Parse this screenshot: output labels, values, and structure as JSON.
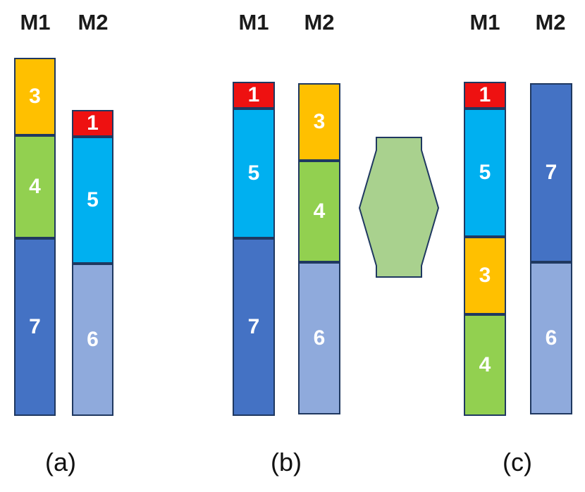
{
  "colors": {
    "job1": "#ee1111",
    "job3": "#ffc000",
    "job4": "#92d050",
    "job5": "#00b0f0",
    "job6": "#8faadc",
    "job7": "#4472c4",
    "border": "#1f3860",
    "arrow_fill": "#a9d18e",
    "arrow_stroke": "#1f3860"
  },
  "arrow_icon": "double-headed-hexagon-arrow-icon",
  "panels": [
    {
      "caption": "(a)",
      "machines": [
        {
          "label": "M1",
          "jobs": [
            "3",
            "4",
            "7"
          ]
        },
        {
          "label": "M2",
          "jobs": [
            "1",
            "5",
            "6"
          ]
        }
      ]
    },
    {
      "caption": "(b)",
      "machines": [
        {
          "label": "M1",
          "jobs": [
            "1",
            "5",
            "7"
          ]
        },
        {
          "label": "M2",
          "jobs": [
            "3",
            "4",
            "6"
          ]
        }
      ]
    },
    {
      "caption": "(c)",
      "machines": [
        {
          "label": "M1",
          "jobs": [
            "1",
            "5",
            "3",
            "4"
          ]
        },
        {
          "label": "M2",
          "jobs": [
            "7",
            "6"
          ]
        }
      ]
    }
  ]
}
